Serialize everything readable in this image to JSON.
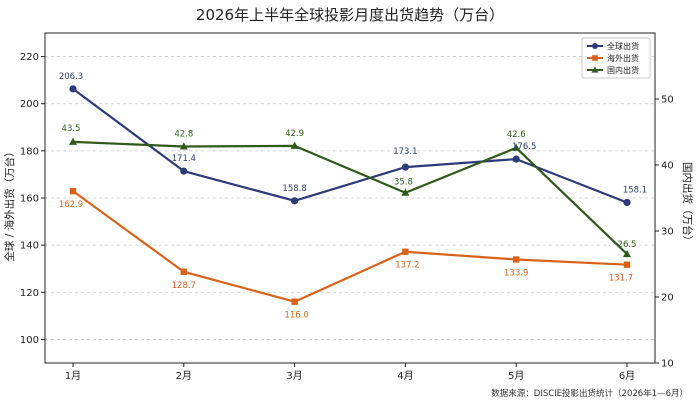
{
  "chart_data": {
    "type": "line",
    "title": "2026年上半年全球投影月度出货趋势（万台）",
    "categories": [
      "1月",
      "2月",
      "3月",
      "4月",
      "5月",
      "6月"
    ],
    "ylabel": "全球 / 海外出货（万台）",
    "ylabel_right": "国内出货（万台）",
    "ylim": [
      90,
      230
    ],
    "ylim_right": [
      10,
      60
    ],
    "yticks": [
      100,
      120,
      140,
      160,
      180,
      200,
      220
    ],
    "yticks_right": [
      10,
      20,
      30,
      40,
      50
    ],
    "grid": true,
    "legend_position": "top-right",
    "series": [
      {
        "name": "全球出货",
        "axis": "left",
        "color": "#2b3a7a",
        "marker": "circle",
        "values": [
          206.3,
          171.4,
          158.8,
          173.1,
          176.5,
          158.1
        ],
        "labels": [
          "206.3",
          "171.4",
          "158.8",
          "173.1",
          "176.5",
          "158.1"
        ]
      },
      {
        "name": "海外出货",
        "axis": "left",
        "color": "#d9621a",
        "marker": "square",
        "values": [
          162.9,
          128.7,
          116.0,
          137.2,
          133.9,
          131.7
        ],
        "labels": [
          "162.9",
          "128.7",
          "116.0",
          "137.2",
          "133.9",
          "131.7"
        ]
      },
      {
        "name": "国内出货",
        "axis": "right",
        "color": "#2e5a1a",
        "marker": "triangle",
        "values": [
          43.5,
          42.8,
          42.9,
          35.8,
          42.6,
          26.5
        ],
        "labels": [
          "43.5",
          "42.8",
          "42.9",
          "35.8",
          "42.6",
          "26.5"
        ]
      }
    ],
    "source": "数据来源：DISCIE投影出货统计（2026年1—6月）"
  }
}
